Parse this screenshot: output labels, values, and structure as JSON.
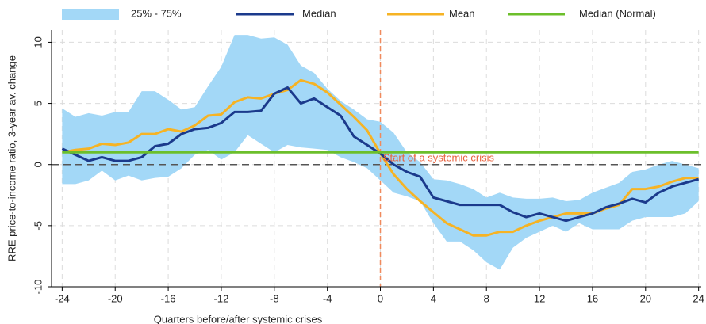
{
  "chart_data": {
    "type": "line",
    "x_label": "Quarters before/after systemic crises",
    "y_label": "RRE price-to-income ratio, 3-year av. change",
    "x": [
      -24,
      -23,
      -22,
      -21,
      -20,
      -19,
      -18,
      -17,
      -16,
      -15,
      -14,
      -13,
      -12,
      -11,
      -10,
      -9,
      -8,
      -7,
      -6,
      -5,
      -4,
      -3,
      -2,
      -1,
      0,
      1,
      2,
      3,
      4,
      5,
      6,
      7,
      8,
      9,
      10,
      11,
      12,
      13,
      14,
      15,
      16,
      17,
      18,
      19,
      20,
      21,
      22,
      23,
      24
    ],
    "band": {
      "name": "25% - 75%",
      "color": "#a3d8f7",
      "upper": [
        4.6,
        3.9,
        4.2,
        4.0,
        4.3,
        4.3,
        6.0,
        6.0,
        5.3,
        4.5,
        4.7,
        6.4,
        8.0,
        10.6,
        10.6,
        10.3,
        10.4,
        9.8,
        8.1,
        7.5,
        6.2,
        5.2,
        4.5,
        3.7,
        3.5,
        2.6,
        1.0,
        0.2,
        -1.2,
        -1.3,
        -1.6,
        -2.0,
        -2.7,
        -2.3,
        -2.7,
        -2.8,
        -2.8,
        -2.7,
        -3.0,
        -2.9,
        -2.3,
        -1.9,
        -1.5,
        -0.6,
        -0.4,
        0.0,
        0.3,
        0.0,
        -0.3
      ],
      "lower": [
        -1.6,
        -1.6,
        -1.3,
        -0.5,
        -1.3,
        -0.9,
        -1.3,
        -1.1,
        -1.0,
        -0.3,
        0.8,
        1.2,
        0.4,
        1.0,
        2.4,
        1.7,
        1.0,
        1.6,
        1.4,
        1.3,
        1.2,
        0.6,
        0.2,
        -0.3,
        -1.3,
        -2.3,
        -2.6,
        -3.0,
        -4.8,
        -6.3,
        -6.3,
        -7.0,
        -8.0,
        -8.6,
        -6.8,
        -6.0,
        -5.5,
        -5.0,
        -5.5,
        -4.8,
        -5.3,
        -5.3,
        -5.3,
        -4.6,
        -4.3,
        -4.3,
        -4.3,
        -4.0,
        -3.0
      ]
    },
    "series": [
      {
        "name": "Median",
        "color": "#1b3a8c",
        "values": [
          1.3,
          0.8,
          0.3,
          0.6,
          0.3,
          0.3,
          0.6,
          1.5,
          1.7,
          2.5,
          2.9,
          3.0,
          3.4,
          4.3,
          4.3,
          4.4,
          5.8,
          6.3,
          5.0,
          5.4,
          4.7,
          4.0,
          2.3,
          1.6,
          0.9,
          0.0,
          -0.6,
          -1.0,
          -2.7,
          -3.0,
          -3.3,
          -3.3,
          -3.3,
          -3.3,
          -3.9,
          -4.3,
          -4.0,
          -4.3,
          -4.6,
          -4.3,
          -4.0,
          -3.5,
          -3.2,
          -2.8,
          -3.1,
          -2.3,
          -1.8,
          -1.5,
          -1.2
        ]
      },
      {
        "name": "Mean",
        "color": "#f6b324",
        "values": [
          1.0,
          1.2,
          1.3,
          1.7,
          1.6,
          1.8,
          2.5,
          2.5,
          2.9,
          2.7,
          3.2,
          4.0,
          4.1,
          5.1,
          5.5,
          5.4,
          5.8,
          6.1,
          6.9,
          6.6,
          5.9,
          4.9,
          3.9,
          2.8,
          0.9,
          -0.8,
          -2.0,
          -3.0,
          -3.9,
          -4.8,
          -5.3,
          -5.8,
          -5.8,
          -5.5,
          -5.5,
          -5.0,
          -4.6,
          -4.3,
          -4.0,
          -4.0,
          -4.0,
          -3.6,
          -3.3,
          -2.0,
          -2.0,
          -1.8,
          -1.4,
          -1.1,
          -1.1
        ]
      },
      {
        "name": "Median (Normal)",
        "color": "#6cbf2b",
        "x": [
          -24,
          24
        ],
        "values": [
          1.0,
          1.0
        ]
      }
    ],
    "hline_y": 0,
    "vline_x": 0,
    "annotation": {
      "text": "Start of a systemic crisis",
      "x": 0.2,
      "y": 0.5,
      "color": "#e8603c"
    },
    "xlim": [
      -24.8,
      24.2
    ],
    "ylim": [
      -10,
      11
    ],
    "xticks": [
      -24,
      -20,
      -16,
      -12,
      -8,
      -4,
      0,
      4,
      8,
      12,
      16,
      20,
      24
    ],
    "yticks": [
      -10,
      -5,
      0,
      5,
      10
    ],
    "grid": true
  }
}
